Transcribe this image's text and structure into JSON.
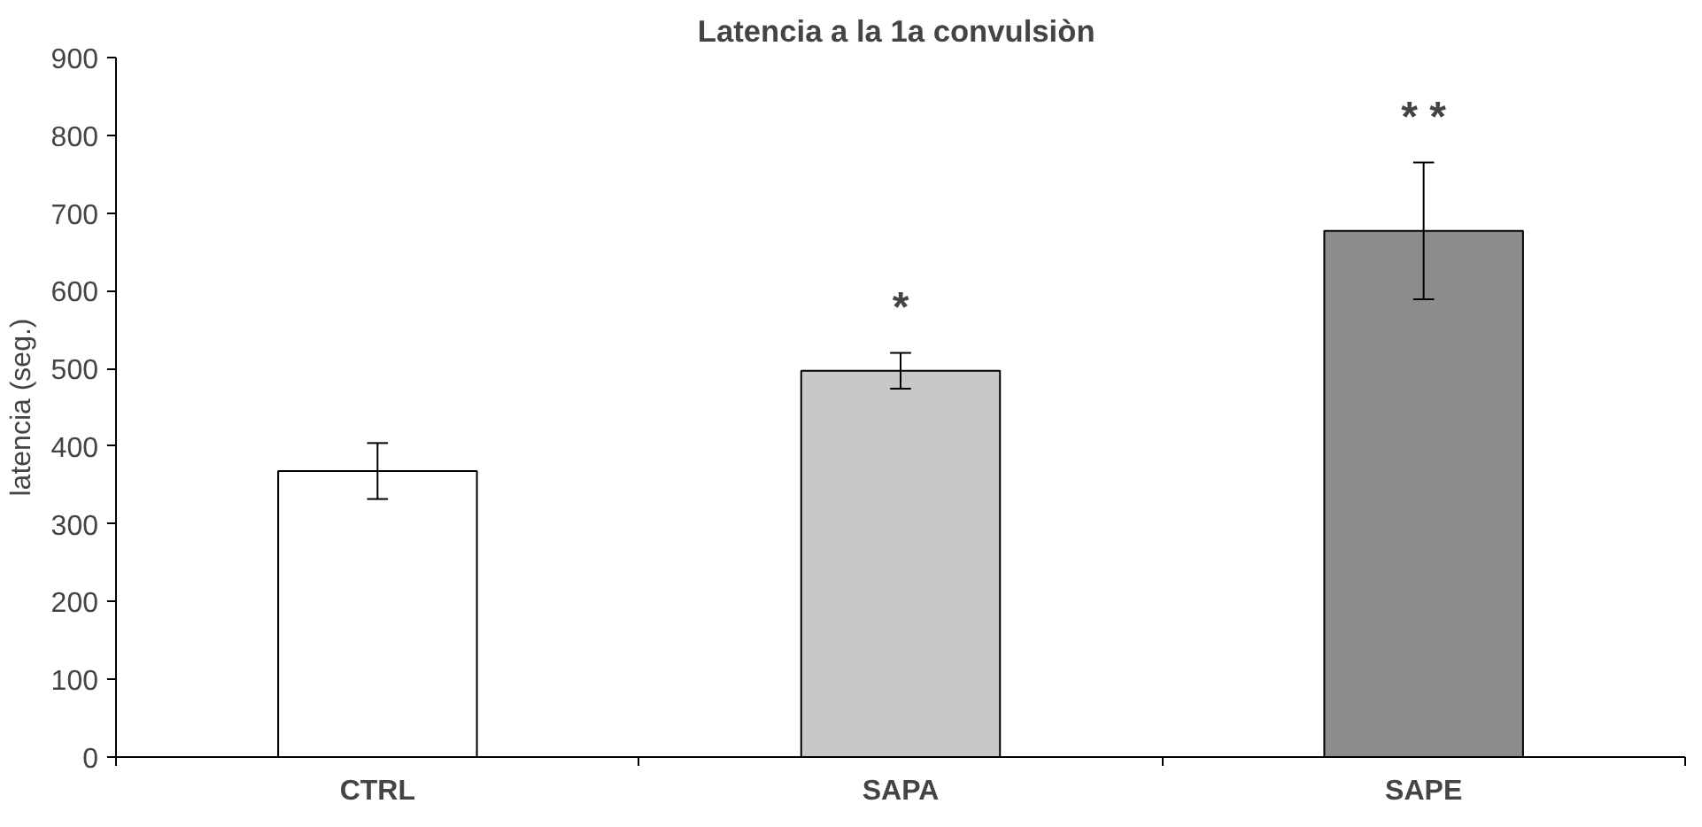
{
  "chart_data": {
    "type": "bar",
    "title": "Latencia a  la 1a convulsiòn",
    "ylabel": "latencia (seg.)",
    "categories": [
      "CTRL",
      "SAPA",
      "SAPE"
    ],
    "values": [
      368,
      497,
      677
    ],
    "colors": [
      "#ffffff",
      "#c8c8c8",
      "#8c8c8c"
    ],
    "errors": [
      36,
      23,
      88
    ],
    "ylim": [
      0,
      900
    ],
    "yticks": [
      0,
      100,
      200,
      300,
      400,
      500,
      600,
      700,
      800,
      900
    ],
    "grid": false,
    "annotations": [
      "*",
      "* *"
    ]
  }
}
